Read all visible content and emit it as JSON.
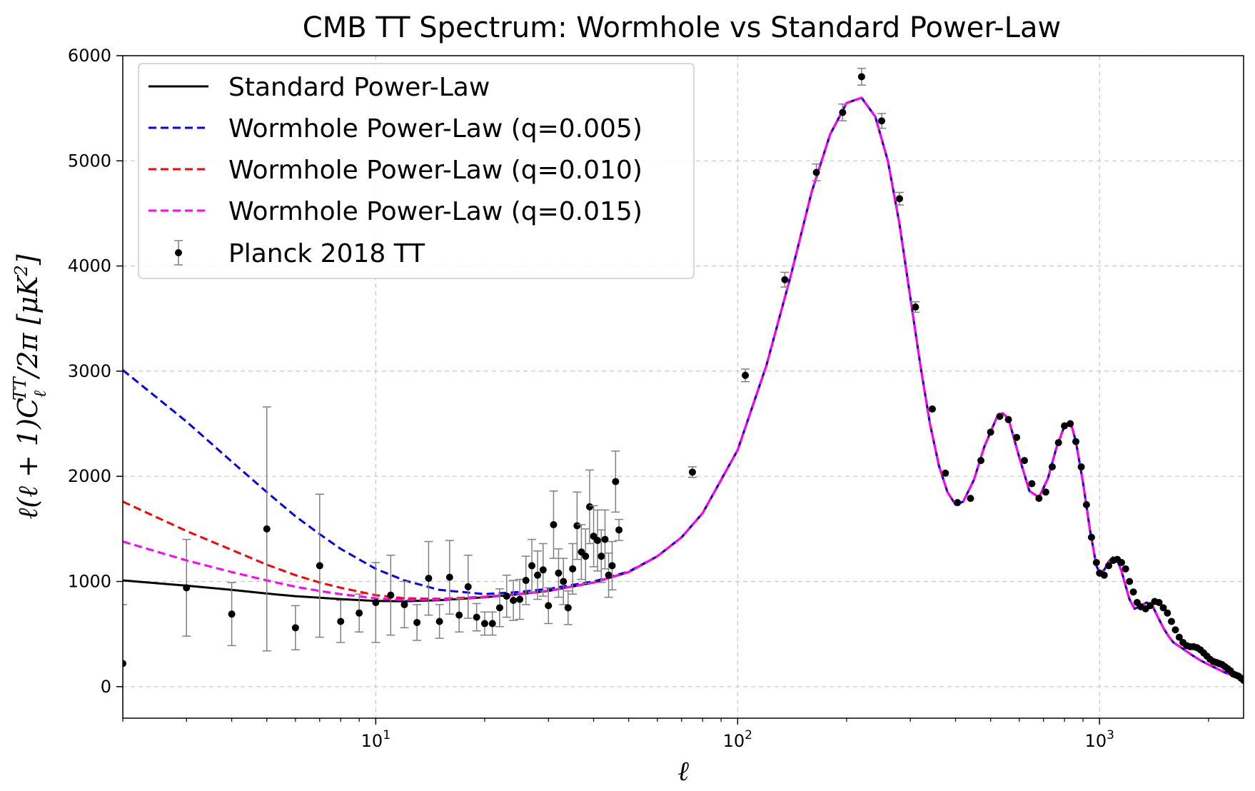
{
  "chart_data": {
    "type": "line",
    "title": "CMB TT Spectrum: Wormhole vs Standard Power-Law",
    "xlabel": "ℓ",
    "ylabel": "ℓ(ℓ + 1)C",
    "ylabel_sub": "ℓ",
    "ylabel_sup": "TT",
    "ylabel_tail": "/2π [μK",
    "ylabel_exp": "2",
    "ylabel_close": "]",
    "xscale": "log",
    "xlim": [
      2,
      2500
    ],
    "ylim": [
      -300,
      6000
    ],
    "grid": true,
    "legend_position": "upper-left",
    "x_ticks": [
      {
        "value": 10,
        "base": "10",
        "exp": "1"
      },
      {
        "value": 100,
        "base": "10",
        "exp": "2"
      },
      {
        "value": 1000,
        "base": "10",
        "exp": "3"
      }
    ],
    "y_ticks": [
      0,
      1000,
      2000,
      3000,
      4000,
      5000,
      6000
    ],
    "y_tick_labels": [
      "0",
      "1000",
      "2000",
      "3000",
      "4000",
      "5000",
      "6000"
    ],
    "model_x": [
      2,
      3,
      4,
      5,
      6,
      7,
      8,
      10,
      12,
      15,
      20,
      25,
      30,
      40,
      50,
      60,
      70,
      80,
      100,
      120,
      140,
      160,
      180,
      200,
      220,
      240,
      260,
      280,
      300,
      320,
      340,
      360,
      380,
      400,
      420,
      450,
      480,
      520,
      540,
      560,
      600,
      640,
      680,
      720,
      760,
      800,
      820,
      840,
      860,
      900,
      940,
      980,
      1000,
      1030,
      1060,
      1090,
      1120,
      1150,
      1180,
      1210,
      1250,
      1300,
      1350,
      1400,
      1450,
      1500,
      1550,
      1600,
      1700,
      1800,
      1900,
      2000,
      2100,
      2200,
      2300,
      2400,
      2500
    ],
    "series": [
      {
        "name": "Standard Power-Law",
        "color": "#000000",
        "dash": "solid",
        "values": [
          1010,
          960,
          920,
          885,
          860,
          845,
          832,
          815,
          812,
          822,
          850,
          880,
          910,
          990,
          1090,
          1240,
          1420,
          1650,
          2250,
          3050,
          3900,
          4700,
          5250,
          5550,
          5600,
          5420,
          5000,
          4400,
          3700,
          3050,
          2500,
          2100,
          1850,
          1730,
          1760,
          1970,
          2280,
          2560,
          2600,
          2550,
          2180,
          1860,
          1800,
          1980,
          2270,
          2480,
          2510,
          2460,
          2330,
          1940,
          1500,
          1150,
          1080,
          1110,
          1190,
          1230,
          1200,
          1100,
          960,
          830,
          740,
          770,
          800,
          770,
          660,
          560,
          480,
          420,
          360,
          300,
          250,
          210,
          175,
          140,
          115,
          90,
          70
        ]
      },
      {
        "name": "Wormhole Power-Law (q=0.005)",
        "color": "#0000ff",
        "dash": "dashed",
        "values": [
          3010,
          2520,
          2140,
          1850,
          1620,
          1450,
          1310,
          1120,
          1010,
          920,
          880,
          900,
          930,
          1000,
          1095,
          1240,
          1420,
          1650,
          2250,
          3050,
          3900,
          4700,
          5250,
          5550,
          5600,
          5420,
          5000,
          4400,
          3700,
          3050,
          2500,
          2100,
          1850,
          1730,
          1760,
          1970,
          2280,
          2560,
          2600,
          2550,
          2180,
          1860,
          1800,
          1980,
          2270,
          2480,
          2510,
          2460,
          2330,
          1940,
          1500,
          1150,
          1080,
          1110,
          1190,
          1230,
          1200,
          1100,
          960,
          830,
          740,
          770,
          800,
          770,
          660,
          560,
          480,
          420,
          360,
          300,
          250,
          210,
          175,
          140,
          115,
          90,
          70
        ]
      },
      {
        "name": "Wormhole Power-Law (q=0.010)",
        "color": "#ff0000",
        "dash": "dashed",
        "values": [
          1760,
          1480,
          1300,
          1160,
          1060,
          990,
          940,
          870,
          840,
          835,
          855,
          882,
          912,
          990,
          1090,
          1240,
          1420,
          1650,
          2250,
          3050,
          3900,
          4700,
          5250,
          5550,
          5600,
          5420,
          5000,
          4400,
          3700,
          3050,
          2500,
          2100,
          1850,
          1730,
          1760,
          1970,
          2280,
          2560,
          2600,
          2550,
          2180,
          1860,
          1800,
          1980,
          2270,
          2480,
          2510,
          2460,
          2330,
          1940,
          1500,
          1150,
          1080,
          1110,
          1190,
          1230,
          1200,
          1100,
          960,
          830,
          740,
          770,
          800,
          770,
          660,
          560,
          480,
          420,
          360,
          300,
          250,
          210,
          175,
          140,
          115,
          90,
          70
        ]
      },
      {
        "name": "Wormhole Power-Law (q=0.015)",
        "color": "#ff00ff",
        "dash": "dashed",
        "values": [
          1380,
          1200,
          1090,
          1010,
          950,
          910,
          880,
          840,
          825,
          828,
          852,
          881,
          911,
          990,
          1090,
          1240,
          1420,
          1650,
          2250,
          3050,
          3900,
          4700,
          5250,
          5550,
          5600,
          5420,
          5000,
          4400,
          3700,
          3050,
          2500,
          2100,
          1850,
          1730,
          1760,
          1970,
          2280,
          2560,
          2600,
          2550,
          2180,
          1860,
          1800,
          1980,
          2270,
          2480,
          2510,
          2460,
          2330,
          1940,
          1500,
          1150,
          1080,
          1110,
          1190,
          1230,
          1200,
          1100,
          960,
          830,
          740,
          770,
          800,
          770,
          660,
          560,
          480,
          420,
          360,
          300,
          250,
          210,
          175,
          140,
          115,
          90,
          70
        ]
      }
    ],
    "observations": {
      "name": "Planck 2018 TT",
      "color": "#000000",
      "points": [
        [
          2,
          220,
          560
        ],
        [
          3,
          940,
          460
        ],
        [
          4,
          690,
          300
        ],
        [
          5,
          1500,
          1160
        ],
        [
          6,
          560,
          210
        ],
        [
          7,
          1150,
          680
        ],
        [
          8,
          620,
          200
        ],
        [
          9,
          700,
          180
        ],
        [
          10,
          800,
          380
        ],
        [
          11,
          870,
          380
        ],
        [
          12,
          780,
          220
        ],
        [
          13,
          610,
          170
        ],
        [
          14,
          1030,
          350
        ],
        [
          15,
          620,
          160
        ],
        [
          16,
          1040,
          350
        ],
        [
          17,
          680,
          160
        ],
        [
          18,
          950,
          300
        ],
        [
          19,
          660,
          130
        ],
        [
          20,
          600,
          110
        ],
        [
          21,
          600,
          110
        ],
        [
          22,
          750,
          180
        ],
        [
          23,
          860,
          200
        ],
        [
          24,
          820,
          190
        ],
        [
          25,
          830,
          190
        ],
        [
          26,
          1010,
          230
        ],
        [
          27,
          1150,
          250
        ],
        [
          28,
          1060,
          230
        ],
        [
          29,
          1110,
          250
        ],
        [
          30,
          770,
          170
        ],
        [
          31,
          1540,
          320
        ],
        [
          32,
          1080,
          230
        ],
        [
          33,
          1000,
          220
        ],
        [
          34,
          750,
          160
        ],
        [
          35,
          1120,
          240
        ],
        [
          36,
          1530,
          320
        ],
        [
          37,
          1280,
          260
        ],
        [
          38,
          1240,
          260
        ],
        [
          39,
          1710,
          350
        ],
        [
          40,
          1430,
          290
        ],
        [
          41,
          1390,
          290
        ],
        [
          42,
          1240,
          250
        ],
        [
          43,
          1400,
          280
        ],
        [
          44,
          1060,
          210
        ],
        [
          45,
          1150,
          230
        ],
        [
          46,
          1950,
          290
        ],
        [
          47,
          1490,
          100
        ],
        [
          75,
          2040,
          50
        ],
        [
          105,
          2960,
          60
        ],
        [
          135,
          3870,
          70
        ],
        [
          165,
          4890,
          80
        ],
        [
          195,
          5460,
          80
        ],
        [
          220,
          5800,
          80
        ],
        [
          250,
          5380,
          70
        ],
        [
          280,
          4640,
          60
        ],
        [
          310,
          3610,
          50
        ],
        [
          345,
          2640,
          40
        ],
        [
          375,
          2030,
          35
        ],
        [
          405,
          1750,
          30
        ],
        [
          440,
          1790,
          30
        ],
        [
          470,
          2150,
          30
        ],
        [
          500,
          2420,
          30
        ],
        [
          530,
          2570,
          30
        ],
        [
          560,
          2540,
          30
        ],
        [
          590,
          2370,
          30
        ],
        [
          620,
          2150,
          28
        ],
        [
          650,
          1930,
          25
        ],
        [
          680,
          1790,
          25
        ],
        [
          710,
          1850,
          25
        ],
        [
          740,
          2090,
          28
        ],
        [
          770,
          2320,
          28
        ],
        [
          800,
          2480,
          28
        ],
        [
          830,
          2500,
          28
        ],
        [
          860,
          2330,
          28
        ],
        [
          890,
          2090,
          28
        ],
        [
          920,
          1730,
          25
        ],
        [
          950,
          1420,
          25
        ],
        [
          980,
          1180,
          25
        ],
        [
          1000,
          1080,
          25
        ],
        [
          1030,
          1060,
          25
        ],
        [
          1060,
          1150,
          25
        ],
        [
          1090,
          1200,
          25
        ],
        [
          1120,
          1210,
          25
        ],
        [
          1150,
          1180,
          25
        ],
        [
          1180,
          1120,
          25
        ],
        [
          1210,
          1000,
          25
        ],
        [
          1240,
          900,
          25
        ],
        [
          1270,
          800,
          25
        ],
        [
          1300,
          760,
          25
        ],
        [
          1340,
          740,
          25
        ],
        [
          1380,
          770,
          25
        ],
        [
          1420,
          810,
          25
        ],
        [
          1460,
          800,
          25
        ],
        [
          1500,
          750,
          25
        ],
        [
          1540,
          700,
          25
        ],
        [
          1580,
          620,
          25
        ],
        [
          1620,
          540,
          25
        ],
        [
          1660,
          470,
          25
        ],
        [
          1700,
          420,
          25
        ],
        [
          1740,
          390,
          25
        ],
        [
          1780,
          380,
          25
        ],
        [
          1820,
          380,
          25
        ],
        [
          1860,
          370,
          25
        ],
        [
          1900,
          350,
          25
        ],
        [
          1940,
          320,
          25
        ],
        [
          1980,
          290,
          25
        ],
        [
          2020,
          260,
          25
        ],
        [
          2060,
          240,
          25
        ],
        [
          2100,
          230,
          25
        ],
        [
          2140,
          220,
          25
        ],
        [
          2180,
          210,
          25
        ],
        [
          2220,
          190,
          25
        ],
        [
          2260,
          170,
          25
        ],
        [
          2300,
          150,
          25
        ],
        [
          2340,
          120,
          25
        ],
        [
          2380,
          110,
          25
        ],
        [
          2420,
          100,
          25
        ],
        [
          2460,
          80,
          25
        ],
        [
          2500,
          60,
          25
        ]
      ]
    }
  }
}
